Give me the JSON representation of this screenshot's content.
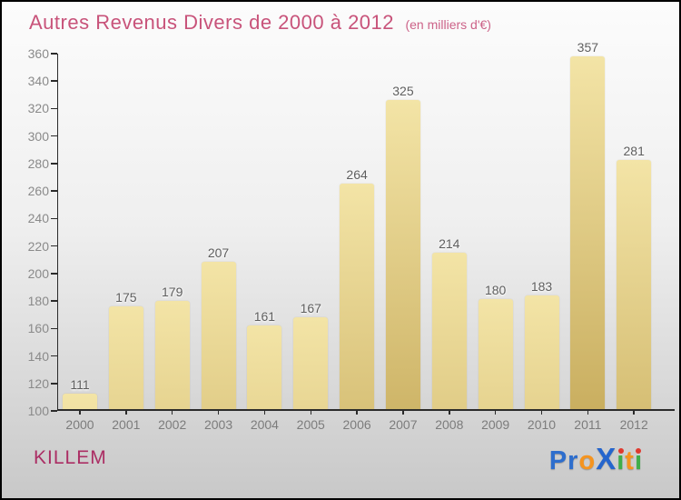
{
  "page": {
    "background_top": "#fcfcfc",
    "background_bottom": "#c8c8c8",
    "border_color": "#000000"
  },
  "chart_data": {
    "type": "bar",
    "title": "Autres Revenus Divers de 2000 à 2012",
    "subtitle": "(en milliers d'€)",
    "title_color": "#c8537a",
    "categories": [
      "2000",
      "2001",
      "2002",
      "2003",
      "2004",
      "2005",
      "2006",
      "2007",
      "2008",
      "2009",
      "2010",
      "2011",
      "2012"
    ],
    "values": [
      111,
      175,
      179,
      207,
      161,
      167,
      264,
      325,
      214,
      180,
      183,
      357,
      281
    ],
    "yticks": [
      100,
      120,
      140,
      160,
      180,
      200,
      220,
      240,
      260,
      280,
      300,
      320,
      340,
      360
    ],
    "ylim": [
      100,
      360
    ],
    "xlabel": "",
    "ylabel": "",
    "grid": false,
    "legend": false,
    "bar_color_top": "#f3e4a6",
    "bar_color_bottom": "#c9ae5f",
    "value_label_color": "#5e5e5e",
    "axis_color": "#2b2b2b",
    "tick_label_color": "#8a8a8a"
  },
  "footer": {
    "entity": "KILLEM",
    "entity_color": "#ab2e64",
    "logo": {
      "text": "Proxiti",
      "letters": [
        {
          "ch": "P",
          "color": "#2e6ecd"
        },
        {
          "ch": "r",
          "color": "#2e6ecd"
        },
        {
          "ch": "o",
          "color": "#f5941f"
        },
        {
          "ch": "X",
          "color": "#2565cd",
          "big": true
        },
        {
          "ch": "i",
          "color": "#3fae49",
          "dot": "#e0392e"
        },
        {
          "ch": "t",
          "color": "#f5941f"
        },
        {
          "ch": "i",
          "color": "#3fae49",
          "dot": "#e0392e"
        }
      ]
    }
  }
}
